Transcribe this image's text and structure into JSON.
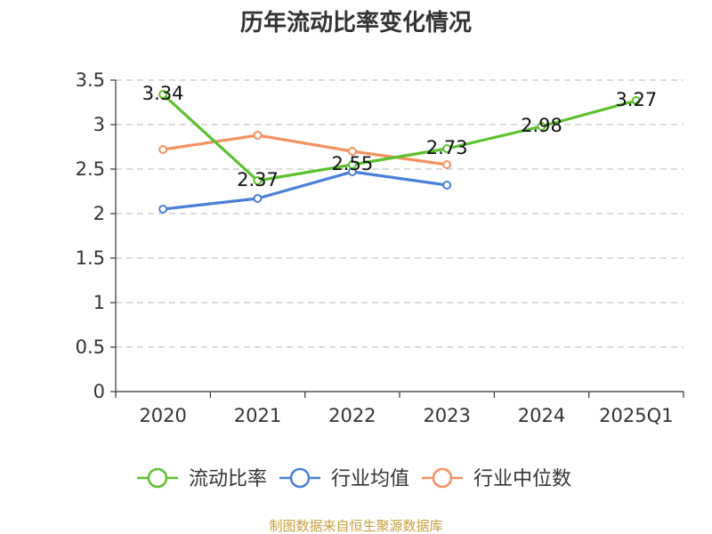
{
  "chart_data": {
    "type": "line",
    "title": "历年流动比率变化情况",
    "categories": [
      "2020",
      "2021",
      "2022",
      "2023",
      "2024",
      "2025Q1"
    ],
    "ylim": [
      0,
      3.5
    ],
    "yticks": [
      "0",
      "0.5",
      "1",
      "1.5",
      "2",
      "2.5",
      "3",
      "3.5"
    ],
    "grid": true,
    "legend_position": "bottom",
    "series": [
      {
        "name": "流动比率",
        "color": "#5cc12e",
        "values": [
          3.34,
          2.37,
          2.55,
          2.73,
          2.98,
          3.27
        ],
        "labels": [
          "3.34",
          "2.37",
          "2.55",
          "2.73",
          "2.98",
          "3.27"
        ]
      },
      {
        "name": "行业均值",
        "color": "#4a80d8",
        "values": [
          2.05,
          2.17,
          2.47,
          2.32,
          null,
          null
        ]
      },
      {
        "name": "行业中位数",
        "color": "#f59160",
        "values": [
          2.72,
          2.88,
          2.7,
          2.55,
          null,
          null
        ]
      }
    ]
  },
  "source": "制图数据来自恒生聚源数据库"
}
